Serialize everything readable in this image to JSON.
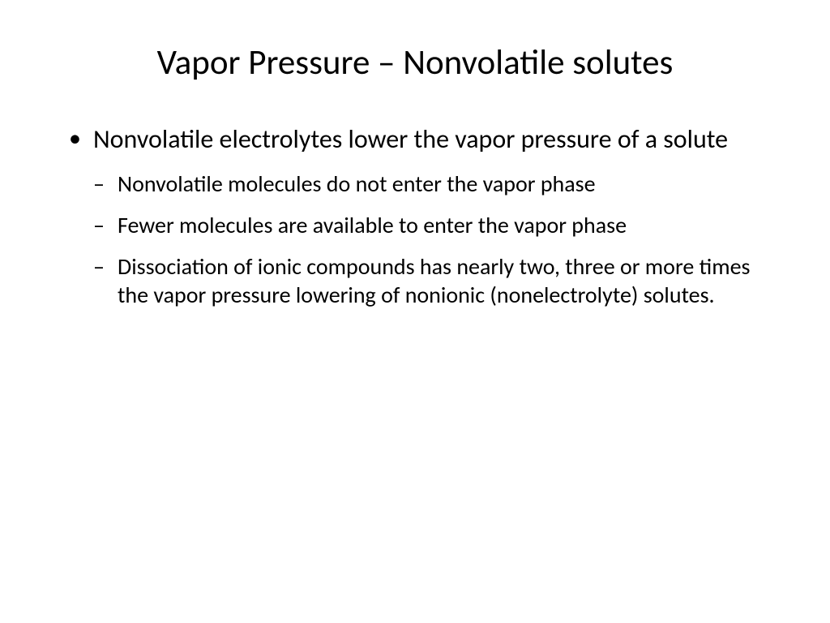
{
  "slide": {
    "title": "Vapor Pressure – Nonvolatile solutes",
    "bullet1": "Nonvolatile electrolytes lower the vapor pressure of a solute",
    "sub1": "Nonvolatile molecules do not enter the vapor phase",
    "sub2": "Fewer molecules are available to enter the vapor phase",
    "sub3": "Dissociation of ionic compounds has nearly two, three or more times the vapor pressure lowering of nonionic (nonelectrolyte) solutes."
  },
  "colors": {
    "background": "#ffffff",
    "text": "#000000"
  },
  "fonts": {
    "title_size": 43,
    "level1_size": 32,
    "level2_size": 28,
    "family": "Calibri"
  }
}
